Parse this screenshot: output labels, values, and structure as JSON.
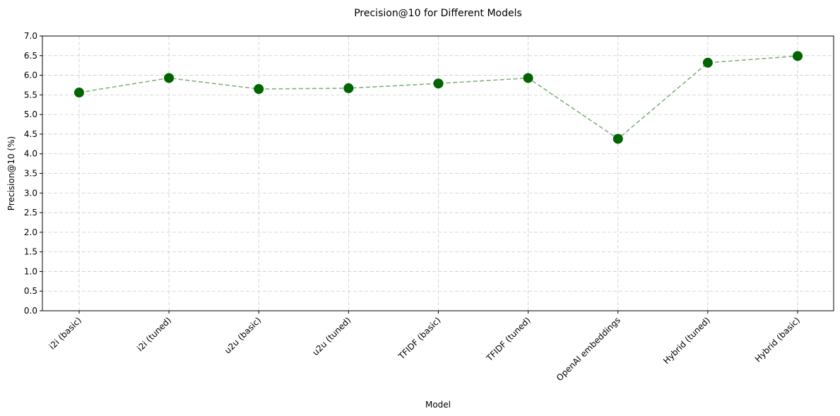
{
  "chart_data": {
    "type": "line",
    "title": "Precision@10 for Different Models",
    "xlabel": "Model",
    "ylabel": "Precision@10 (%)",
    "categories": [
      "i2i (basic)",
      "i2i (tuned)",
      "u2u (basic)",
      "u2u (tuned)",
      "TFIDF (basic)",
      "TFIDF (tuned)",
      "OpenAI embeddings",
      "Hybrid (tuned)",
      "Hybrid (basic)"
    ],
    "values": [
      5.56,
      5.93,
      5.65,
      5.67,
      5.79,
      5.93,
      4.38,
      6.32,
      6.49
    ],
    "ylim": [
      0,
      7
    ],
    "yticks": [
      "0.0",
      "0.5",
      "1.0",
      "1.5",
      "2.0",
      "2.5",
      "3.0",
      "3.5",
      "4.0",
      "4.5",
      "5.0",
      "5.5",
      "6.0",
      "6.5",
      "7.0"
    ],
    "grid": true,
    "line_color": "#7fb27f",
    "marker_color": "#006400"
  }
}
